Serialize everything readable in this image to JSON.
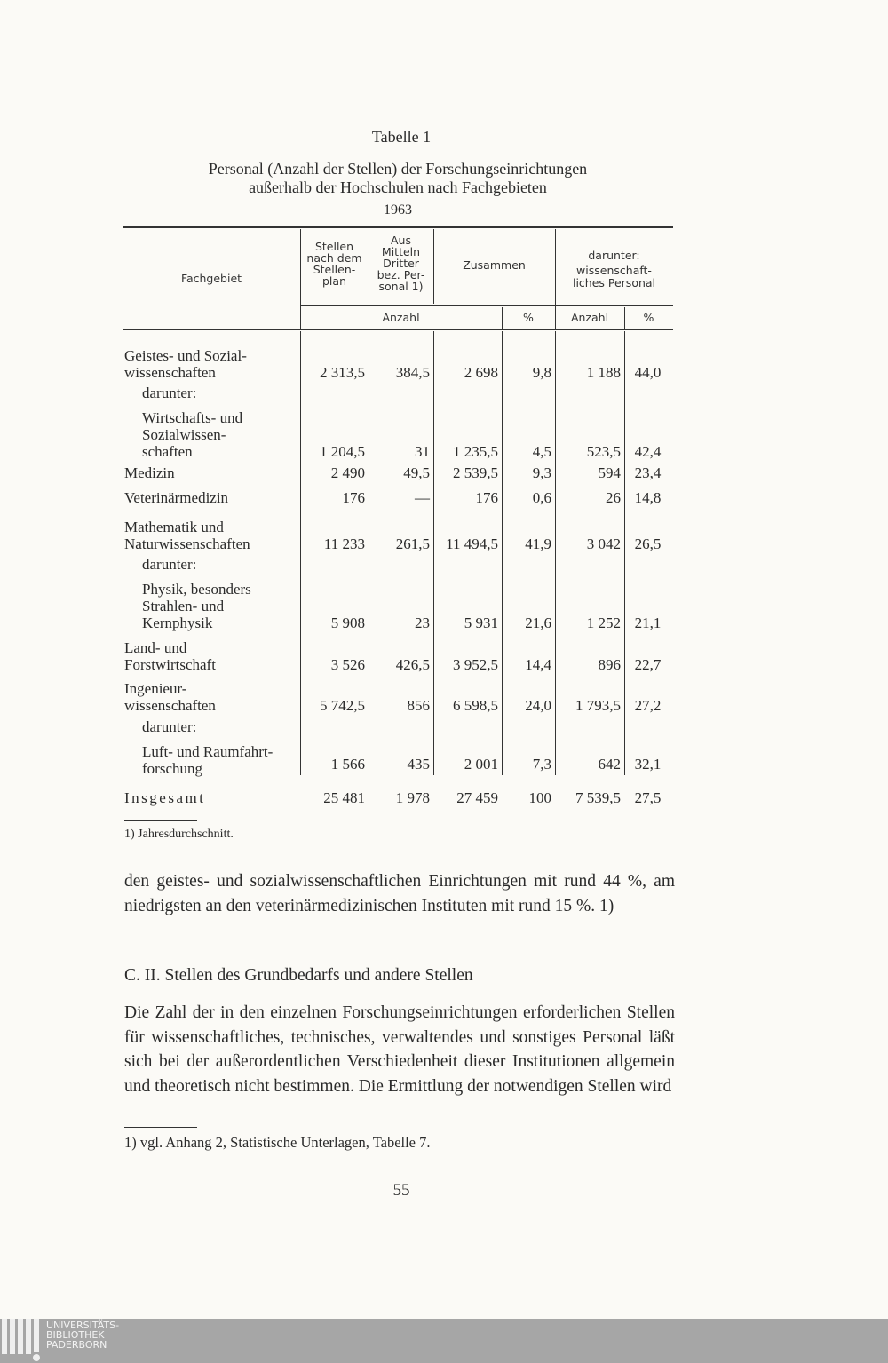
{
  "table": {
    "label": "Tabelle 1",
    "title_lines": [
      "Personal (Anzahl der Stellen) der Forschungseinrichtungen",
      "außerhalb der Hochschulen nach Fachgebieten"
    ],
    "year": "1963",
    "headers": {
      "fachgebiet": "Fachgebiet",
      "stellen": [
        "Stellen",
        "nach dem",
        "Stellen-",
        "plan"
      ],
      "dritter": [
        "Aus",
        "Mitteln",
        "Dritter",
        "bez. Per-",
        "sonal 1)"
      ],
      "zusammen": "Zusammen",
      "darunter": [
        "darunter:",
        "wissenschaft-",
        "liches Personal"
      ],
      "anzahl": "Anzahl",
      "percent": "%",
      "anzahl2": "Anzahl",
      "percent2": "%"
    },
    "rows": [
      {
        "label": [
          "Geistes- und Sozial-",
          "wissenschaften"
        ],
        "values": [
          "2 313,5",
          "384,5",
          "2 698",
          "9,8",
          "1 188",
          "44,0"
        ]
      },
      {
        "label": [
          "darunter:"
        ],
        "indent": true,
        "values": []
      },
      {
        "label": [
          "Wirtschafts- und",
          "Sozialwissen-",
          "schaften"
        ],
        "indent": true,
        "values": [
          "1 204,5",
          "31",
          "1 235,5",
          "4,5",
          "523,5",
          "42,4"
        ]
      },
      {
        "label": [
          "Medizin"
        ],
        "values": [
          "2 490",
          "49,5",
          "2 539,5",
          "9,3",
          "594",
          "23,4"
        ]
      },
      {
        "label": [
          "Veterinärmedizin"
        ],
        "values": [
          "176",
          "—",
          "176",
          "0,6",
          "26",
          "14,8"
        ]
      },
      {
        "label": [
          "Mathematik und",
          "Naturwissenschaften"
        ],
        "values": [
          "11 233",
          "261,5",
          "11 494,5",
          "41,9",
          "3 042",
          "26,5"
        ]
      },
      {
        "label": [
          "darunter:"
        ],
        "indent": true,
        "values": []
      },
      {
        "label": [
          "Physik, besonders",
          "Strahlen- und",
          "Kernphysik"
        ],
        "indent": true,
        "values": [
          "5 908",
          "23",
          "5 931",
          "21,6",
          "1 252",
          "21,1"
        ]
      },
      {
        "label": [
          "Land- und",
          "Forstwirtschaft"
        ],
        "values": [
          "3 526",
          "426,5",
          "3 952,5",
          "14,4",
          "896",
          "22,7"
        ]
      },
      {
        "label": [
          "Ingenieur-",
          "wissenschaften"
        ],
        "values": [
          "5 742,5",
          "856",
          "6 598,5",
          "24,0",
          "1 793,5",
          "27,2"
        ]
      },
      {
        "label": [
          "darunter:"
        ],
        "indent": true,
        "values": []
      },
      {
        "label": [
          "Luft- und Raumfahrt-",
          "forschung"
        ],
        "indent": true,
        "values": [
          "1 566",
          "435",
          "2 001",
          "7,3",
          "642",
          "32,1"
        ]
      },
      {
        "label": [
          "Insgesamt"
        ],
        "total": true,
        "values": [
          "25 481",
          "1 978",
          "27 459",
          "100",
          "7 539,5",
          "27,5"
        ]
      }
    ],
    "footnote": "1) Jahresdurchschnitt."
  },
  "text": {
    "para1": "den geistes- und sozialwissenschaftlichen Einrichtungen mit rund 44 %, am niedrigsten an den veterinärmedizinischen Instituten mit rund 15 %. 1)",
    "heading": "C. II. Stellen des Grundbedarfs und andere Stellen",
    "para2": "Die Zahl der in den einzelnen Forschungseinrichtungen erforderlichen Stellen für wissenschaftliches, technisches, verwaltendes und sonstiges Personal läßt sich bei der außerordentlichen Verschiedenheit dieser Institutionen allgemein und theoretisch nicht bestimmen. Die Ermittlung der notwendigen Stellen wird",
    "footnote": "1) vgl. Anhang 2, Statistische Unterlagen, Tabelle 7.",
    "page_number": "55"
  },
  "library_logo": {
    "lines": [
      "UNIVERSITÄTS-",
      "BIBLIOTHEK",
      "PADERBORN"
    ]
  }
}
